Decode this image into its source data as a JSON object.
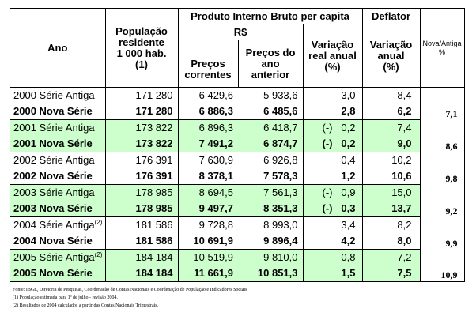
{
  "header": {
    "ano": "Ano",
    "populacao": [
      "População",
      "residente",
      "1 000 hab.",
      "(1)"
    ],
    "pib": "Produto Interno Bruto per capita",
    "deflator": "Deflator",
    "nova_antiga": [
      "Nova/Antiga",
      "%"
    ],
    "rs": "R$",
    "precos_correntes": [
      "Preços",
      "correntes"
    ],
    "precos_ano_anterior": [
      "Preços do",
      "ano",
      "anterior"
    ],
    "variacao_real": [
      "Variação",
      "real anual",
      "(%)"
    ],
    "variacao_anual": [
      "Variação",
      "anual",
      "(%)"
    ]
  },
  "rows": [
    {
      "ano": "2000 Série Antiga",
      "sup": "",
      "pop": "171 280",
      "pc": "6 429,6",
      "paa": "5 933,6",
      "sign": "",
      "var": "3,0",
      "def": "8,4",
      "na": ""
    },
    {
      "ano": "2000 Nova Série",
      "sup": "",
      "pop": "171 280",
      "pc": "6 886,3",
      "paa": "6 485,6",
      "sign": "",
      "var": "2,8",
      "def": "6,2",
      "na": "7,1"
    },
    {
      "ano": "2001 Série Antiga",
      "sup": "",
      "pop": "173 822",
      "pc": "6 896,3",
      "paa": "6 418,7",
      "sign": "(-)",
      "var": "0,2",
      "def": "7,4",
      "na": ""
    },
    {
      "ano": "2001 Nova Série",
      "sup": "",
      "pop": "173 822",
      "pc": "7 491,2",
      "paa": "6 874,7",
      "sign": "(-)",
      "var": "0,2",
      "def": "9,0",
      "na": "8,6"
    },
    {
      "ano": "2002 Série Antiga",
      "sup": "",
      "pop": "176 391",
      "pc": "7 630,9",
      "paa": "6 926,8",
      "sign": "",
      "var": "0,4",
      "def": "10,2",
      "na": ""
    },
    {
      "ano": "2002 Nova Série",
      "sup": "",
      "pop": "176 391",
      "pc": "8 378,1",
      "paa": "7 578,3",
      "sign": "",
      "var": "1,2",
      "def": "10,6",
      "na": "9,8"
    },
    {
      "ano": "2003 Série Antiga",
      "sup": "",
      "pop": "178 985",
      "pc": "8 694,5",
      "paa": "7 561,3",
      "sign": "(-)",
      "var": "0,9",
      "def": "15,0",
      "na": ""
    },
    {
      "ano": "2003 Nova Série",
      "sup": "",
      "pop": "178 985",
      "pc": "9 497,7",
      "paa": "8 351,3",
      "sign": "(-)",
      "var": "0,3",
      "def": "13,7",
      "na": "9,2"
    },
    {
      "ano": "2004 Série Antiga",
      "sup": "(2)",
      "pop": "181 586",
      "pc": "9 728,8",
      "paa": "8 993,0",
      "sign": "",
      "var": "3,4",
      "def": "8,2",
      "na": ""
    },
    {
      "ano": "2004 Nova Série",
      "sup": "",
      "pop": "181 586",
      "pc": "10 691,9",
      "paa": "9 896,4",
      "sign": "",
      "var": "4,2",
      "def": "8,0",
      "na": "9,9"
    },
    {
      "ano": "2005 Série Antiga",
      "sup": "(2)",
      "pop": "184 184",
      "pc": "10 519,9",
      "paa": "9 810,0",
      "sign": "",
      "var": "0,8",
      "def": "7,2",
      "na": ""
    },
    {
      "ano": "2005 Nova Série",
      "sup": "",
      "pop": "184 184",
      "pc": "11 661,9",
      "paa": "10 851,3",
      "sign": "",
      "var": "1,5",
      "def": "7,5",
      "na": "10,9"
    }
  ],
  "notes": [
    "Fonte: IBGE, Diretoria de Pesquisas, Coordenação de Contas Nacionais e Coordenação de População e Indicadores Sociais",
    "(1) População estimada para 1º de julho - revisão 2004.",
    "(2) Resultados de 2004 calculados a partir das Contas Nacionais Trimestrais."
  ]
}
